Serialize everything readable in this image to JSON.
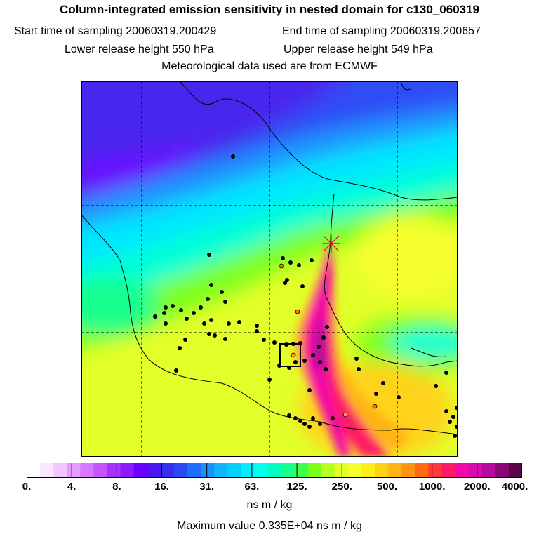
{
  "title": "Column-integrated emission sensitivity in nested domain for c130_060319",
  "start_label": "Start time of sampling",
  "start_value": "20060319.200429",
  "end_label": "End time of sampling",
  "end_value": "20060319.200657",
  "lower_label": "Lower release height",
  "lower_value": "550 hPa",
  "upper_label": "Upper release height",
  "upper_value": "549 hPa",
  "met_line": "Meteorological data used are from ECMWF",
  "colorbar": {
    "tick_labels": [
      "0.",
      "4.",
      "8.",
      "16.",
      "31.",
      "63.",
      "125.",
      "250.",
      "500.",
      "1000.",
      "2000.",
      "4000."
    ],
    "colors": [
      "#ffffff",
      "#fbe6ff",
      "#f2c6ff",
      "#e69cff",
      "#d877ff",
      "#c454ff",
      "#a433ff",
      "#8c1bff",
      "#6a00ff",
      "#4a18ee",
      "#3a2df2",
      "#2d47f5",
      "#1f6fff",
      "#1992ff",
      "#10b6ff",
      "#00d2ff",
      "#00eeff",
      "#00ffec",
      "#00ffbf",
      "#19ff8c",
      "#3cff4a",
      "#78ff1a",
      "#b6ff1e",
      "#e2ff2a",
      "#f6ff2e",
      "#ffee1a",
      "#ffd21a",
      "#ffb414",
      "#ff9414",
      "#ff6a14",
      "#ff3838",
      "#ff1a66",
      "#f20aa6",
      "#d80ab4",
      "#b8089e",
      "#8c0676",
      "#5a0548"
    ],
    "units": "ns m / kg"
  },
  "max_label": "Maximum value",
  "max_value": "0.335E+04 ns m / kg"
}
